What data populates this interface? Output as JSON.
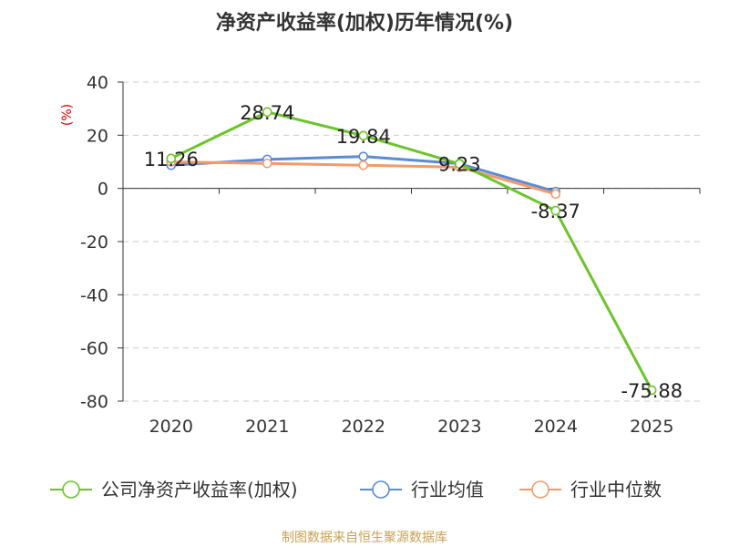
{
  "chart_data": {
    "type": "line",
    "title": "净资产收益率(加权)历年情况(%)",
    "ylabel": "(%)",
    "xlabel": "",
    "categories": [
      "2020",
      "2021",
      "2022",
      "2023",
      "2024",
      "2025"
    ],
    "ylim": [
      -80,
      40
    ],
    "yticks": [
      40,
      20,
      0,
      -20,
      -40,
      -60,
      -80
    ],
    "grid": true,
    "legend_position": "bottom",
    "series": [
      {
        "name": "公司净资产收益率(加权)",
        "color": "#6bc42a",
        "values": [
          11.26,
          28.74,
          19.84,
          9.23,
          -8.37,
          -75.88
        ],
        "labels": [
          "11.26",
          "28.74",
          "19.84",
          "9.23",
          "-8.37",
          "-75.88"
        ]
      },
      {
        "name": "行业均值",
        "color": "#5b8ad8",
        "values": [
          8.7,
          10.9,
          12.0,
          9.3,
          -1.2,
          null
        ]
      },
      {
        "name": "行业中位数",
        "color": "#f39a6b",
        "values": [
          10.0,
          9.4,
          8.7,
          8.0,
          -2.1,
          null
        ]
      }
    ]
  },
  "source": "制图数据来自恒生聚源数据库",
  "colors": {
    "title": "#333333",
    "axis": "#333333",
    "grid": "#cccccc",
    "ylabel": "#cc0000",
    "source": "#c8a052"
  }
}
